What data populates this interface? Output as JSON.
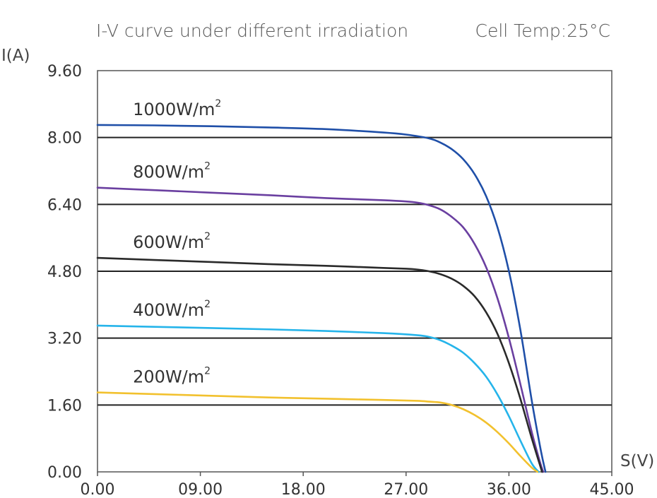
{
  "chart_data": {
    "type": "line",
    "title": "I-V curve under different irradiation",
    "annotation": "Cell Temp:25°C",
    "xlabel": "S(V)",
    "ylabel": "I(A)",
    "xlim": [
      0,
      45
    ],
    "ylim": [
      0,
      9.6
    ],
    "x_ticks": [
      "0.00",
      "09.00",
      "18.00",
      "27.00",
      "36.00",
      "45.00"
    ],
    "y_ticks": [
      "0.00",
      "1.60",
      "3.20",
      "4.80",
      "6.40",
      "8.00",
      "9.60"
    ],
    "grid": "horizontal",
    "colors": {
      "frame": "#555555",
      "grid": "#222222"
    },
    "series": [
      {
        "name": "1000W/m",
        "sup": "2",
        "color": "#1f4fa8",
        "x": [
          0,
          5,
          10,
          15,
          20,
          25,
          27,
          29,
          30,
          31,
          32,
          33,
          34,
          35,
          36,
          37,
          38,
          38.8,
          39.2
        ],
        "y": [
          8.3,
          8.29,
          8.27,
          8.24,
          8.2,
          8.12,
          8.07,
          7.98,
          7.88,
          7.72,
          7.48,
          7.12,
          6.6,
          5.85,
          4.8,
          3.4,
          1.7,
          0.5,
          0.0
        ]
      },
      {
        "name": "800W/m",
        "sup": "2",
        "color": "#6a3fa0",
        "x": [
          0,
          5,
          10,
          15,
          20,
          25,
          27,
          28,
          29,
          30,
          31,
          32,
          33,
          34,
          35,
          36,
          37,
          38,
          38.7,
          39.0
        ],
        "y": [
          6.8,
          6.74,
          6.68,
          6.62,
          6.55,
          6.5,
          6.47,
          6.44,
          6.38,
          6.28,
          6.1,
          5.85,
          5.45,
          4.9,
          4.15,
          3.2,
          2.1,
          0.95,
          0.25,
          0.0
        ]
      },
      {
        "name": "600W/m",
        "sup": "2",
        "color": "#2a2a2a",
        "x": [
          0,
          5,
          10,
          15,
          20,
          25,
          27,
          28,
          29,
          30,
          31,
          32,
          33,
          34,
          35,
          36,
          37,
          38,
          38.9
        ],
        "y": [
          5.12,
          5.07,
          5.02,
          4.97,
          4.93,
          4.88,
          4.86,
          4.84,
          4.8,
          4.73,
          4.62,
          4.45,
          4.2,
          3.82,
          3.3,
          2.6,
          1.75,
          0.8,
          0.0
        ]
      },
      {
        "name": "400W/m",
        "sup": "2",
        "color": "#25b4ea",
        "x": [
          0,
          5,
          10,
          15,
          20,
          25,
          28,
          29,
          30,
          31,
          32,
          33,
          34,
          35,
          36,
          37,
          38,
          38.6
        ],
        "y": [
          3.5,
          3.47,
          3.44,
          3.41,
          3.37,
          3.32,
          3.27,
          3.23,
          3.15,
          3.02,
          2.85,
          2.6,
          2.28,
          1.85,
          1.33,
          0.75,
          0.2,
          0.0
        ]
      },
      {
        "name": "200W/m",
        "sup": "2",
        "color": "#f2c12e",
        "x": [
          0,
          5,
          10,
          15,
          20,
          25,
          28,
          29,
          30,
          31,
          32,
          33,
          34,
          35,
          36,
          37,
          38,
          38.5
        ],
        "y": [
          1.9,
          1.86,
          1.82,
          1.78,
          1.75,
          1.72,
          1.7,
          1.68,
          1.66,
          1.6,
          1.5,
          1.36,
          1.18,
          0.95,
          0.68,
          0.38,
          0.1,
          0.0
        ]
      }
    ]
  }
}
